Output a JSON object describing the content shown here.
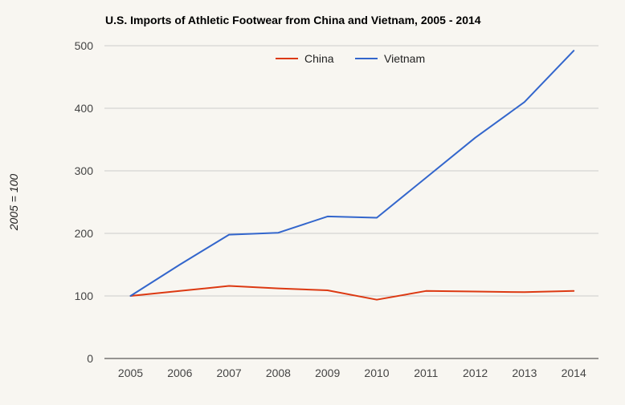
{
  "chart_data": {
    "type": "line",
    "title": "U.S. Imports of Athletic Footwear from China and Vietnam, 2005 - 2014",
    "xlabel": "",
    "ylabel": "2005 = 100",
    "x": [
      "2005",
      "2006",
      "2007",
      "2008",
      "2009",
      "2010",
      "2011",
      "2012",
      "2013",
      "2014"
    ],
    "ylim": [
      0,
      500
    ],
    "yticks": [
      0,
      100,
      200,
      300,
      400,
      500
    ],
    "grid": true,
    "legend_position": "top",
    "series": [
      {
        "name": "China",
        "color": "#dc3912",
        "values": [
          100,
          108,
          116,
          112,
          109,
          94,
          108,
          107,
          106,
          108
        ]
      },
      {
        "name": "Vietnam",
        "color": "#3366cc",
        "values": [
          100,
          150,
          198,
          201,
          227,
          225,
          289,
          353,
          410,
          492
        ]
      }
    ]
  }
}
